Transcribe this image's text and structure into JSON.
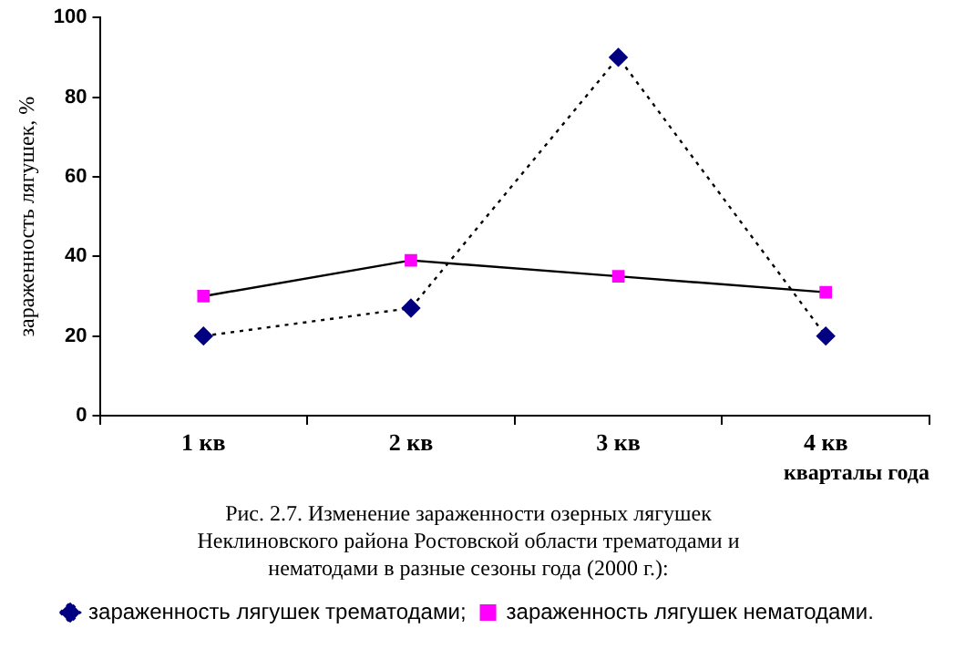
{
  "chart_data": {
    "type": "line",
    "title": "Рис. 2.7. Изменение зараженности озерных лягушек Неклиновского района Ростовской области трематодами и нематодами в разные сезоны года (2000 г.):",
    "xlabel": "кварталы года",
    "ylabel": "зараженность лягушек, %",
    "categories": [
      "1 кв",
      "2 кв",
      "3 кв",
      "4 кв"
    ],
    "series": [
      {
        "name": "зараженность лягушек трематодами;",
        "color": "#000080",
        "marker": "diamond",
        "line_style": "dotted",
        "values": [
          20,
          27,
          90,
          20
        ]
      },
      {
        "name": "зараженность лягушек нематодами.",
        "color": "#ff00ff",
        "marker": "square",
        "line_style": "solid",
        "values": [
          30,
          39,
          35,
          31
        ]
      }
    ],
    "ylim": [
      0,
      100
    ],
    "yticks": [
      0,
      20,
      40,
      60,
      80,
      100
    ],
    "grid": false,
    "legend": "bottom"
  }
}
